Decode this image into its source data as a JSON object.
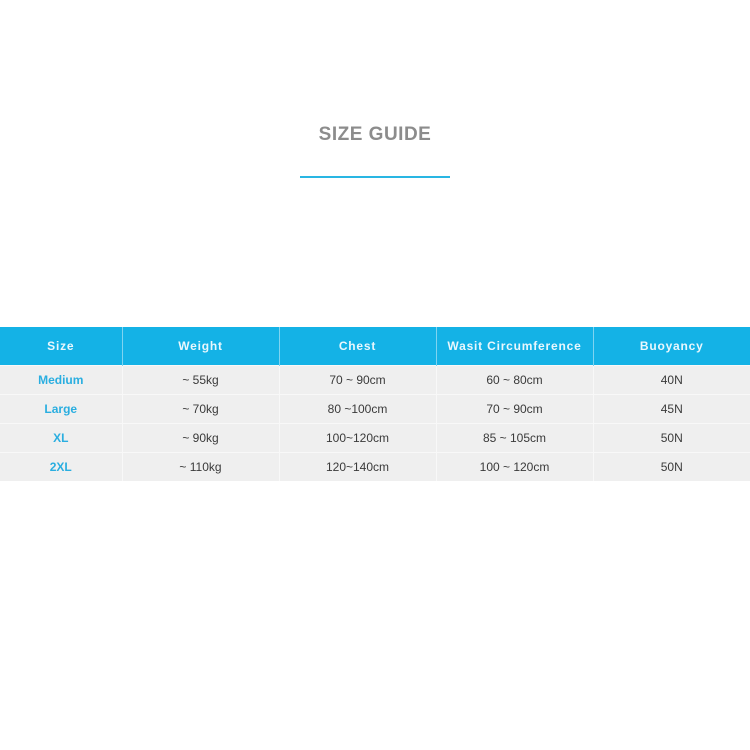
{
  "title": "SIZE GUIDE",
  "colors": {
    "accent": "#14b2e6",
    "row_bg": "#efefef",
    "size_text": "#2aaee0",
    "title": "#8c8c8c"
  },
  "table": {
    "headers": [
      "Size",
      "Weight",
      "Chest",
      "Wasit Circumference",
      "Buoyancy"
    ],
    "rows": [
      [
        "Medium",
        "~ 55kg",
        "70 ~ 90cm",
        "60 ~ 80cm",
        "40N"
      ],
      [
        "Large",
        "~ 70kg",
        "80 ~100cm",
        "70 ~ 90cm",
        "45N"
      ],
      [
        "XL",
        "~ 90kg",
        "100~120cm",
        "85 ~ 105cm",
        "50N"
      ],
      [
        "2XL",
        "~ 110kg",
        "120~140cm",
        "100 ~ 120cm",
        "50N"
      ]
    ]
  }
}
